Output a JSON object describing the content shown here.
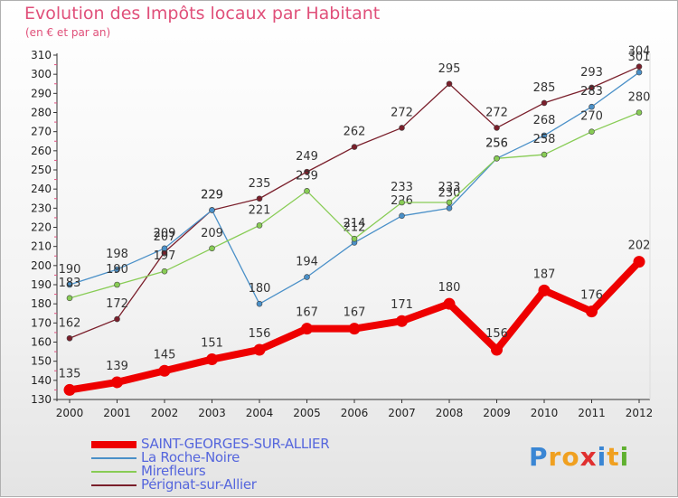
{
  "title": "Evolution des Impôts locaux par Habitant",
  "subtitle": "(en € et par an)",
  "logo": {
    "text": "Proxiti",
    "letters": [
      "P",
      "r",
      "o",
      "x",
      "i",
      "t",
      "i"
    ],
    "colors": [
      "#3a86d4",
      "#f0a020",
      "#f0a020",
      "#e03030",
      "#3a86d4",
      "#f0a020",
      "#60b030"
    ]
  },
  "chart_data": {
    "type": "line",
    "title": "Evolution des Impôts locaux par Habitant",
    "subtitle": "(en € et par an)",
    "xlabel": "",
    "ylabel": "",
    "x": [
      "2000",
      "2001",
      "2002",
      "2003",
      "2004",
      "2005",
      "2006",
      "2007",
      "2008",
      "2009",
      "2010",
      "2011",
      "2012"
    ],
    "ylim": [
      130,
      310
    ],
    "yticks": [
      130,
      140,
      150,
      160,
      170,
      180,
      190,
      200,
      210,
      220,
      230,
      240,
      250,
      260,
      270,
      280,
      290,
      300,
      310
    ],
    "grid": false,
    "legend": "bottom-left",
    "series": [
      {
        "name": "Pérignat-sur-Allier",
        "color": "#7a1f2b",
        "values": [
          162,
          172,
          207,
          229,
          235,
          249,
          262,
          272,
          295,
          272,
          285,
          293,
          304
        ]
      },
      {
        "name": "La Roche-Noire",
        "color": "#4a90c8",
        "values": [
          190,
          198,
          209,
          229,
          180,
          194,
          212,
          226,
          230,
          256,
          268,
          283,
          301
        ]
      },
      {
        "name": "Mirefleurs",
        "color": "#88cc55",
        "values": [
          183,
          190,
          197,
          209,
          221,
          239,
          214,
          233,
          233,
          256,
          258,
          270,
          280
        ]
      },
      {
        "name": "SAINT-GEORGES-SUR-ALLIER",
        "color": "#ee0000",
        "values": [
          135,
          139,
          145,
          151,
          156,
          167,
          167,
          171,
          180,
          156,
          187,
          176,
          202
        ]
      }
    ]
  },
  "legend_items": [
    {
      "label": "SAINT-GEORGES-SUR-ALLIER",
      "color": "#ee0000",
      "thick": true
    },
    {
      "label": "La Roche-Noire",
      "color": "#4a90c8",
      "thick": false
    },
    {
      "label": "Mirefleurs",
      "color": "#88cc55",
      "thick": false
    },
    {
      "label": "Pérignat-sur-Allier",
      "color": "#7a1f2b",
      "thick": false
    }
  ]
}
